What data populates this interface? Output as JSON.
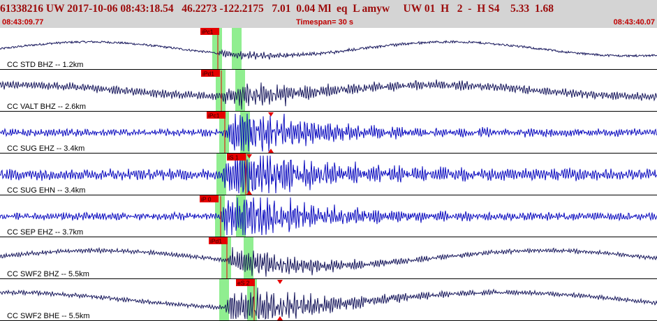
{
  "header": {
    "evid": "61338216",
    "network": "UW",
    "datetime": "2017-10-06 08:43:18.54",
    "lat": "46.2273",
    "lon": "-122.2175",
    "depth": "7.01",
    "magnitude": "0.04",
    "magtype": "Ml",
    "etype": "eq",
    "gtype": "L",
    "author": "amyw",
    "source": "UW 01",
    "quality_flag": "H",
    "version": "2",
    "separator": "-",
    "review": "H",
    "review_code": "S4",
    "extra1": "5.33",
    "extra2": "1.68",
    "start_time": "08:43:09.77",
    "timespan_label": "Timespan=",
    "timespan_value": "30 s",
    "end_time": "08:43:40.07"
  },
  "colors": {
    "header_bg": "#d4d4d4",
    "header_text": "#9c0b0b",
    "time_text": "#c00000",
    "trace_dark": "#17175c",
    "trace_blue": "#0b0bbf",
    "pick": "#e60000",
    "window_band": "#90ee90"
  },
  "traces": [
    {
      "label": "CC STD BHZ -- 1.2km",
      "pick_label": "iPc1",
      "color_key": "trace_dark"
    },
    {
      "label": "CC VALT BHZ -- 2.6km",
      "pick_label": "iPd1",
      "color_key": "trace_dark"
    },
    {
      "label": "CC SUG EHZ -- 3.4km",
      "pick_label": "iPc1",
      "color_key": "trace_blue"
    },
    {
      "label": "CC SUG EHN -- 3.4km",
      "pick_label": "iS 1",
      "color_key": "trace_blue"
    },
    {
      "label": "CC SEP EHZ -- 3.7km",
      "pick_label": "iP 0",
      "color_key": "trace_blue"
    },
    {
      "label": "CC SWF2 BHZ -- 5.5km",
      "pick_label": "iPd1",
      "color_key": "trace_dark"
    },
    {
      "label": "CC SWF2 BHE -- 5.5km",
      "pick_label": "eS 2",
      "color_key": "trace_dark"
    }
  ]
}
